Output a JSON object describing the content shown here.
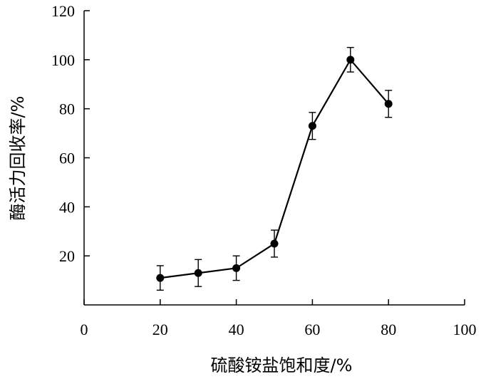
{
  "chart_data": {
    "type": "line",
    "xlabel": "硫酸铵盐饱和度/%",
    "ylabel": "酶活力回收率/%",
    "xlim": [
      0,
      100
    ],
    "ylim": [
      0,
      120
    ],
    "x_ticks": [
      0,
      20,
      40,
      60,
      80,
      100
    ],
    "y_ticks": [
      20,
      40,
      60,
      80,
      100,
      120
    ],
    "grid": false,
    "legend": "none",
    "series": [
      {
        "x": [
          20,
          30,
          40,
          50,
          60,
          70,
          80
        ],
        "y": [
          11,
          13,
          15,
          25,
          73,
          100,
          82
        ],
        "error": [
          5,
          5.5,
          5,
          5.5,
          5.5,
          5,
          5.5
        ],
        "color": "#000000",
        "marker": "circle"
      }
    ]
  }
}
